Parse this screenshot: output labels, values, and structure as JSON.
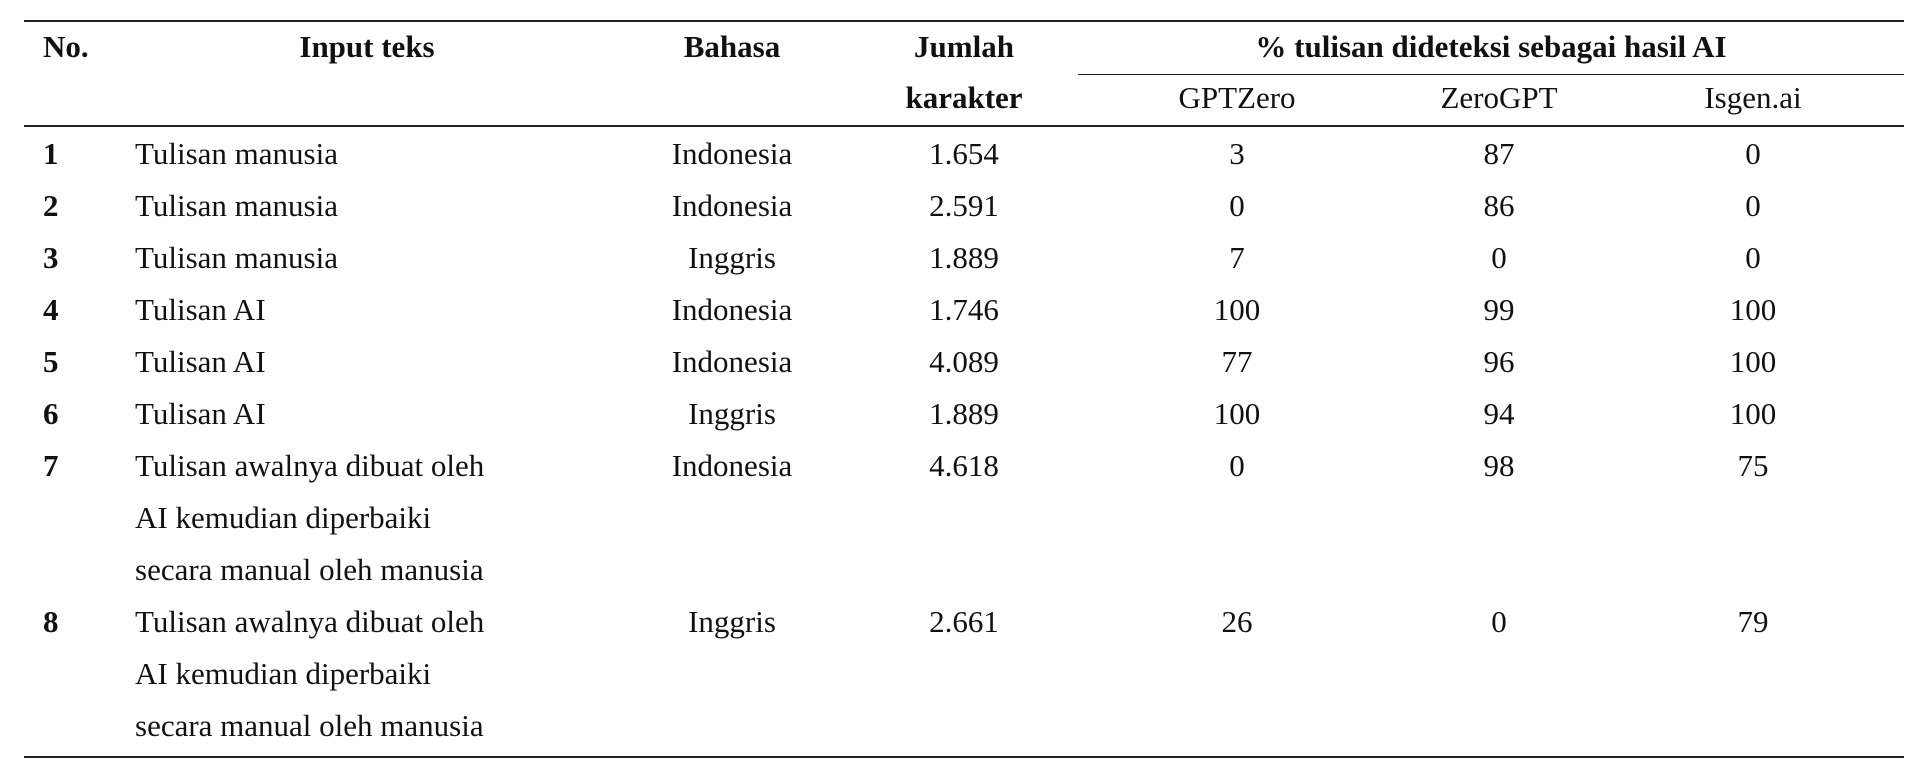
{
  "table": {
    "header": {
      "no": "No.",
      "input": "Input teks",
      "language": "Bahasa",
      "chars": [
        "Jumlah",
        "karakter"
      ],
      "group": "% tulisan dideteksi sebagai hasil AI",
      "tools": [
        "GPTZero",
        "ZeroGPT",
        "Isgen.ai"
      ]
    },
    "rows": [
      {
        "no": "1",
        "input": [
          "Tulisan manusia"
        ],
        "language": "Indonesia",
        "chars": "1.654",
        "scores": [
          "3",
          "87",
          "0"
        ]
      },
      {
        "no": "2",
        "input": [
          "Tulisan manusia"
        ],
        "language": "Indonesia",
        "chars": "2.591",
        "scores": [
          "0",
          "86",
          "0"
        ]
      },
      {
        "no": "3",
        "input": [
          "Tulisan manusia"
        ],
        "language": "Inggris",
        "chars": "1.889",
        "scores": [
          "7",
          "0",
          "0"
        ]
      },
      {
        "no": "4",
        "input": [
          "Tulisan AI"
        ],
        "language": "Indonesia",
        "chars": "1.746",
        "scores": [
          "100",
          "99",
          "100"
        ]
      },
      {
        "no": "5",
        "input": [
          "Tulisan AI"
        ],
        "language": "Indonesia",
        "chars": "4.089",
        "scores": [
          "77",
          "96",
          "100"
        ]
      },
      {
        "no": "6",
        "input": [
          "Tulisan AI"
        ],
        "language": "Inggris",
        "chars": "1.889",
        "scores": [
          "100",
          "94",
          "100"
        ]
      },
      {
        "no": "7",
        "input": [
          "Tulisan awalnya dibuat oleh",
          "AI kemudian diperbaiki",
          "secara manual oleh manusia"
        ],
        "language": "Indonesia",
        "chars": "4.618",
        "scores": [
          "0",
          "98",
          "75"
        ]
      },
      {
        "no": "8",
        "input": [
          "Tulisan awalnya dibuat oleh",
          "AI kemudian diperbaiki",
          "secara manual oleh manusia"
        ],
        "language": "Inggris",
        "chars": "2.661",
        "scores": [
          "26",
          "0",
          "79"
        ]
      }
    ]
  }
}
